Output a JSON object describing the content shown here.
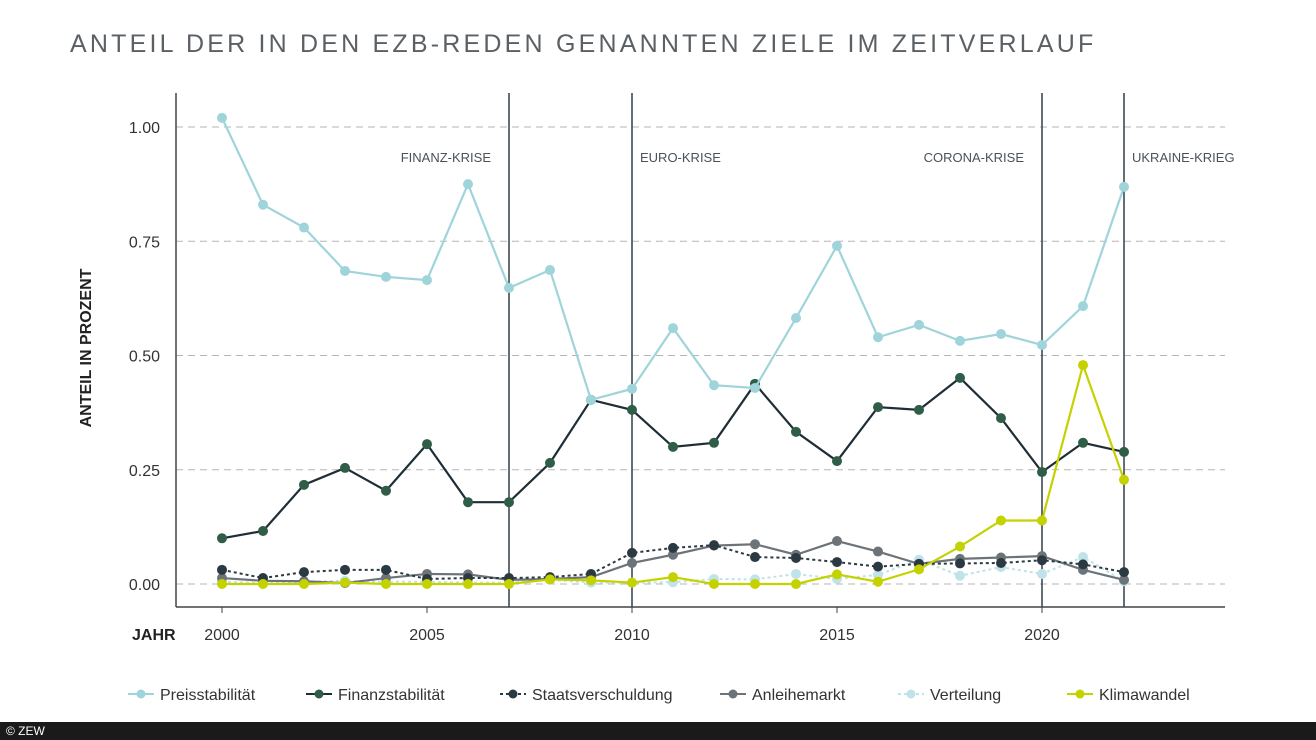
{
  "chart_data": {
    "type": "line",
    "title": "ANTEIL DER IN DEN EZB-REDEN GENANNTEN ZIELE IM ZEITVERLAUF",
    "xlabel": "JAHR",
    "ylabel": "ANTEIL IN PROZENT",
    "xlim": [
      2000,
      2025
    ],
    "ylim": [
      -0.05,
      1.07
    ],
    "xticks": [
      2000,
      2005,
      2010,
      2015,
      2020
    ],
    "yticks": [
      "0.00",
      "0.25",
      "0.50",
      "0.75",
      "1.00"
    ],
    "grid": "horizontal dashed",
    "legend": "bottom",
    "x": [
      2000,
      2001,
      2002,
      2003,
      2004,
      2005,
      2006,
      2007,
      2008,
      2009,
      2010,
      2011,
      2012,
      2013,
      2014,
      2015,
      2016,
      2017,
      2018,
      2019,
      2020,
      2021,
      2022
    ],
    "series": [
      {
        "name": "Preisstabilität",
        "color": "#9fd4db",
        "style": "solid",
        "values": [
          1.02,
          0.83,
          0.78,
          0.685,
          0.672,
          0.665,
          0.875,
          0.648,
          0.687,
          0.403,
          0.427,
          0.56,
          0.435,
          0.429,
          0.582,
          0.74,
          0.54,
          0.567,
          0.532,
          0.547,
          0.523,
          0.608,
          0.869
        ]
      },
      {
        "name": "Finanzstabilität",
        "color": "#2f5d47",
        "style": "solid",
        "values": [
          0.1,
          0.116,
          0.217,
          0.254,
          0.204,
          0.306,
          0.179,
          0.179,
          0.265,
          0.403,
          0.381,
          0.3,
          0.309,
          0.438,
          0.333,
          0.269,
          0.387,
          0.381,
          0.451,
          0.363,
          0.245,
          0.309,
          0.289
        ]
      },
      {
        "name": "Staatsverschuldung",
        "color": "#2b3942",
        "style": "dotted",
        "values": [
          0.031,
          0.013,
          0.026,
          0.031,
          0.031,
          0.011,
          0.013,
          0.013,
          0.015,
          0.022,
          0.068,
          0.079,
          0.085,
          0.059,
          0.057,
          0.048,
          0.038,
          0.044,
          0.045,
          0.046,
          0.052,
          0.043,
          0.026
        ]
      },
      {
        "name": "Anleihemarkt",
        "color": "#6d7479",
        "style": "solid",
        "values": [
          0.013,
          0.007,
          0.006,
          0.002,
          0.013,
          0.022,
          0.021,
          0.009,
          0.011,
          0.015,
          0.046,
          0.064,
          0.084,
          0.087,
          0.064,
          0.094,
          0.071,
          0.044,
          0.055,
          0.058,
          0.061,
          0.031,
          0.009
        ]
      },
      {
        "name": "Verteilung",
        "color": "#bfe3e8",
        "style": "dotted",
        "values": [
          0.005,
          0.002,
          0.005,
          0.007,
          0.005,
          0.005,
          0.003,
          0.003,
          0.009,
          0.003,
          0.003,
          0.004,
          0.011,
          0.01,
          0.022,
          0.011,
          0.02,
          0.053,
          0.018,
          0.037,
          0.022,
          0.059,
          0.006
        ]
      },
      {
        "name": "Klimawandel",
        "color": "#c4d200",
        "style": "solid",
        "values": [
          0,
          0,
          0,
          0.003,
          0,
          0,
          0,
          0,
          0.01,
          0.008,
          0.003,
          0.015,
          0,
          0,
          0,
          0.021,
          0.005,
          0.032,
          0.082,
          0.139,
          0.139,
          0.479,
          0.228
        ]
      }
    ],
    "annotations": [
      {
        "label": "FINANZ-KRISE",
        "x": 2007
      },
      {
        "label": "EURO-KRISE",
        "x": 2010
      },
      {
        "label": "CORONA-KRISE",
        "x": 2020
      },
      {
        "label": "UKRAINE-KRIEG",
        "x": 2022
      }
    ]
  },
  "footer": "© ZEW"
}
